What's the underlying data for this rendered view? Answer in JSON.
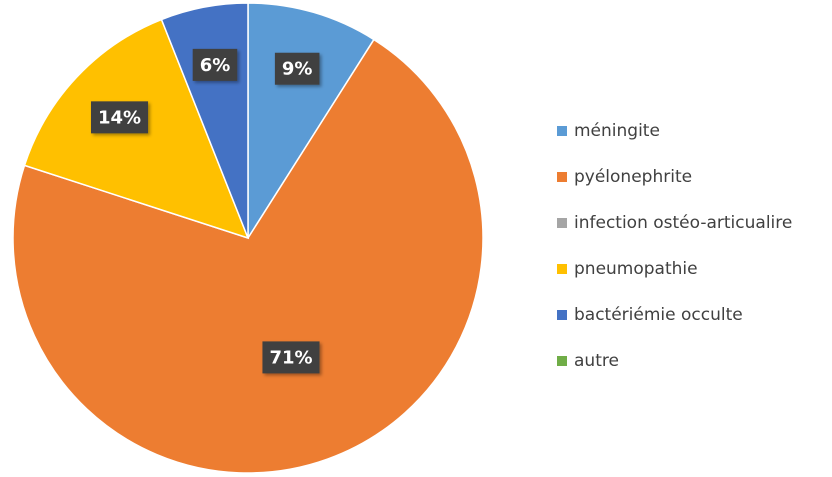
{
  "chart_data": {
    "type": "pie",
    "categories": [
      "méningite",
      "pyélonephrite",
      "infection ostéo-articualire",
      "pneumopathie",
      "bactériémie occulte",
      "autre"
    ],
    "values": [
      9,
      71,
      0,
      14,
      6,
      0
    ],
    "value_labels": [
      "9%",
      "71%",
      null,
      "14%",
      "6%",
      null
    ],
    "colors": [
      "#5b9bd5",
      "#ed7d31",
      "#a5a5a5",
      "#ffc000",
      "#4472c4",
      "#70ad47"
    ]
  }
}
